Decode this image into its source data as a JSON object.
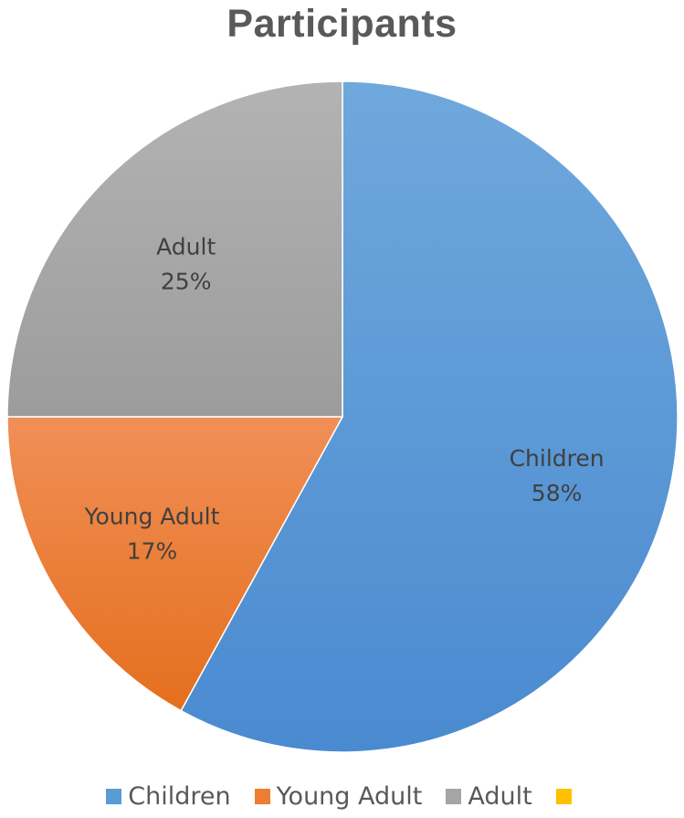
{
  "chart_data": {
    "type": "pie",
    "title": "Participants",
    "categories": [
      "Children",
      "Young Adult",
      "Adult",
      ""
    ],
    "values": [
      58,
      17,
      25,
      0
    ],
    "value_labels": [
      "58%",
      "17%",
      "25%",
      ""
    ],
    "colors": [
      "#5b9bd5",
      "#ed7d31",
      "#a5a5a5",
      "#ffc000"
    ],
    "legend_position": "bottom",
    "data_labels": "category name and percentage inside slices"
  }
}
